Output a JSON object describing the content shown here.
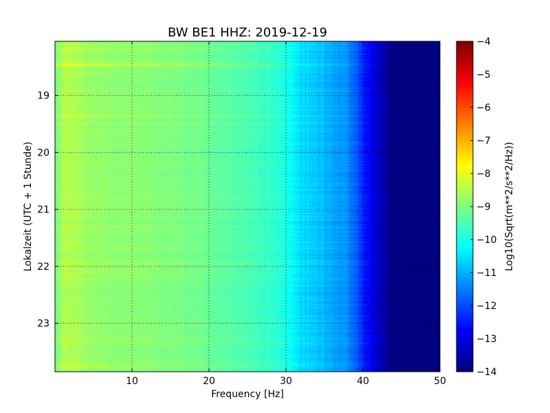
{
  "chart_data": {
    "type": "heatmap",
    "title": "BW BE1 HHZ: 2019-12-19",
    "xlabel": "Frequency [Hz]",
    "ylabel": "Lokalzeit (UTC + 1 Stunde)",
    "colorbar_label": "Log10(Sqrt(m**2/s**2/Hz))",
    "xlim": [
      0,
      50
    ],
    "ylim": [
      18.05,
      23.85
    ],
    "y_inverted": true,
    "x_ticks": [
      10,
      20,
      30,
      40,
      50
    ],
    "x_tick_labels": [
      "10",
      "20",
      "30",
      "40",
      "50"
    ],
    "y_ticks": [
      19,
      20,
      21,
      22,
      23
    ],
    "y_tick_labels": [
      "19",
      "20",
      "21",
      "22",
      "23"
    ],
    "color_range": [
      -14,
      -4
    ],
    "colorbar_ticks": [
      -4,
      -5,
      -6,
      -7,
      -8,
      -9,
      -10,
      -11,
      -12,
      -13,
      -14
    ],
    "colorbar_tick_labels": [
      "−4",
      "−5",
      "−6",
      "−7",
      "−8",
      "−9",
      "−10",
      "−11",
      "−12",
      "−13",
      "−14"
    ],
    "colormap": "jet",
    "grid": true,
    "spectrum_profile": {
      "frequency_hz": [
        0,
        1,
        2,
        5,
        10,
        15,
        20,
        25,
        28,
        30,
        31,
        32,
        35,
        38,
        39,
        40,
        41,
        42,
        43,
        44,
        50
      ],
      "log_amplitude": [
        -9.2,
        -8.5,
        -8.5,
        -8.8,
        -8.9,
        -9.0,
        -9.2,
        -9.5,
        -9.7,
        -10.0,
        -10.3,
        -10.6,
        -10.9,
        -11.4,
        -11.8,
        -12.4,
        -12.9,
        -13.3,
        -13.7,
        -14,
        -14
      ]
    },
    "row_offsets": [
      {
        "time": 18.45,
        "offset": 0.9
      },
      {
        "time": 18.2,
        "offset": 0.3
      },
      {
        "time": 19.35,
        "offset": 0.4
      },
      {
        "time": 21.3,
        "offset": 0.35
      },
      {
        "time": 22.1,
        "offset": 0.35
      },
      {
        "time": 23.75,
        "offset": 0.3
      }
    ]
  }
}
